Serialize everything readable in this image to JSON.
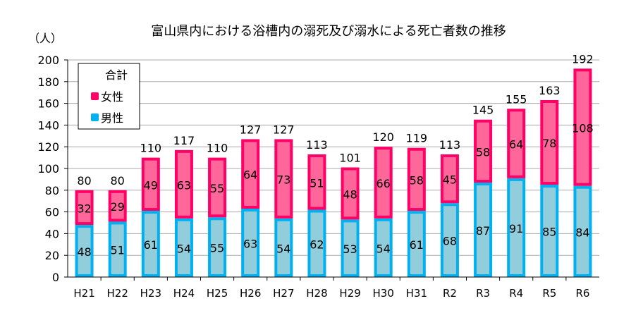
{
  "chart_data": {
    "type": "bar",
    "stacked": true,
    "title": "富山県内における浴槽内の溺死及び溺水による死亡者数の推移",
    "ylabel": "（人）",
    "xlabel": "",
    "ylim": [
      0,
      200
    ],
    "yticks": [
      0,
      20,
      40,
      60,
      80,
      100,
      120,
      140,
      160,
      180,
      200
    ],
    "grid": true,
    "legend": {
      "title": "合計",
      "placement": "top-left"
    },
    "categories": [
      "H21",
      "H22",
      "H23",
      "H24",
      "H25",
      "H26",
      "H27",
      "H28",
      "H29",
      "H30",
      "H31",
      "R2",
      "R3",
      "R4",
      "R5",
      "R6"
    ],
    "series": [
      {
        "name": "男性",
        "color": "#92CDDC",
        "border": "#00B0F0",
        "values": [
          48,
          51,
          61,
          54,
          55,
          63,
          54,
          62,
          53,
          54,
          61,
          68,
          87,
          91,
          85,
          84
        ]
      },
      {
        "name": "女性",
        "color": "#FF6699",
        "border": "#FF0066",
        "values": [
          32,
          29,
          49,
          63,
          55,
          64,
          73,
          51,
          48,
          66,
          58,
          45,
          58,
          64,
          78,
          108
        ]
      }
    ],
    "totals": [
      80,
      80,
      110,
      117,
      110,
      127,
      127,
      113,
      101,
      120,
      119,
      113,
      145,
      155,
      163,
      192
    ]
  }
}
